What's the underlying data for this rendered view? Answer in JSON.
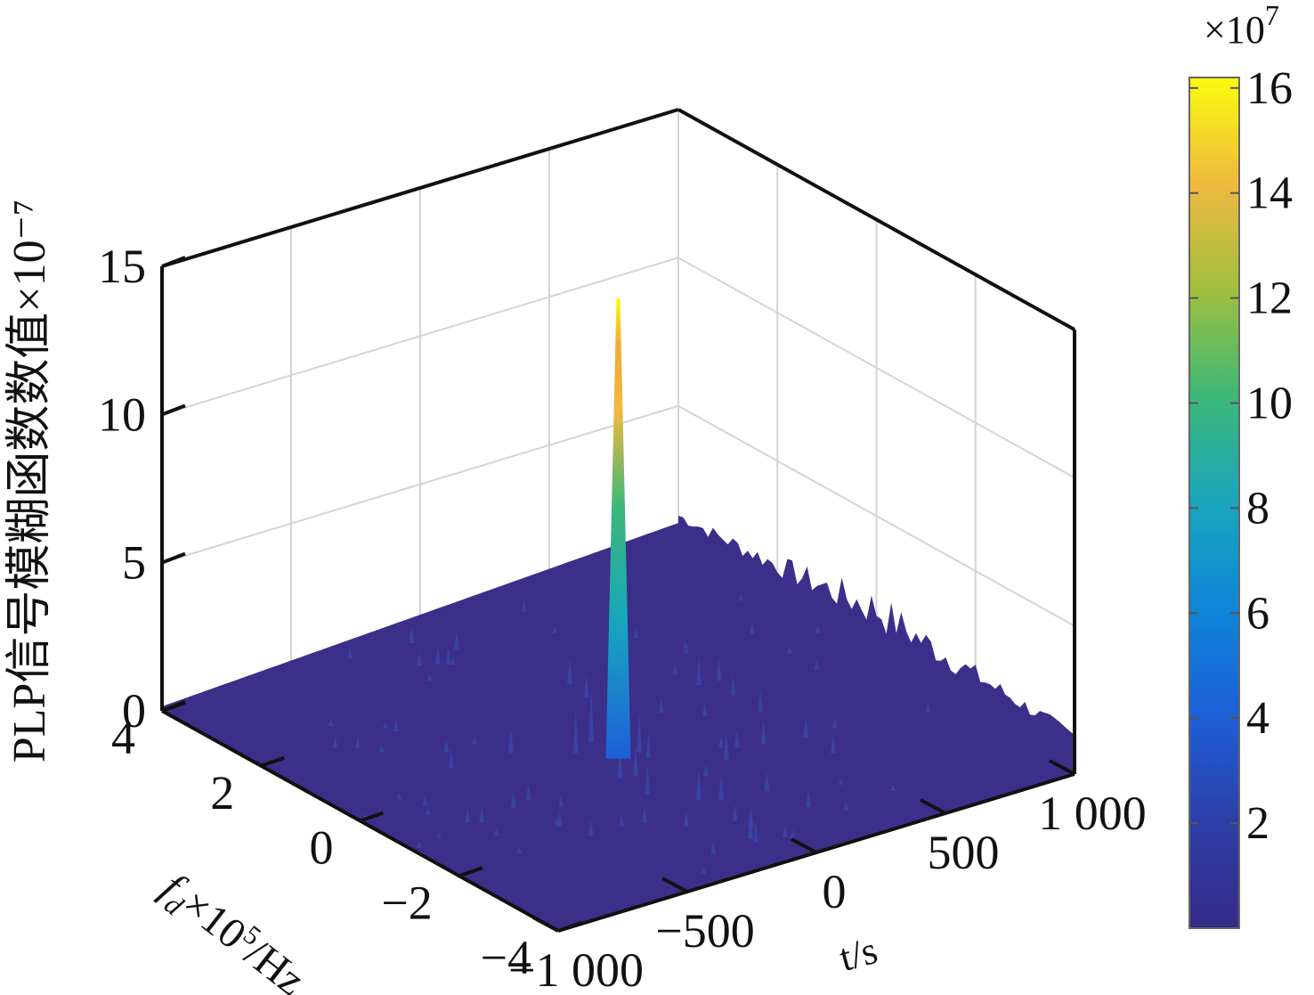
{
  "chart_data": {
    "type": "surface",
    "title": "",
    "zlabel": "PLP信号模糊函数数值×10⁻⁷",
    "xlabel": "t/s",
    "ylabel_main": "f",
    "ylabel_sub": "d",
    "ylabel_rest": "×10",
    "ylabel_sup": "5",
    "ylabel_unit": "/Hz",
    "x_range": [
      -1000,
      1000
    ],
    "y_range": [
      -4,
      4
    ],
    "z_range": [
      0,
      15
    ],
    "x_ticks": [
      "−1 000",
      "−500",
      "0",
      "500",
      "1 000"
    ],
    "y_ticks": [
      "−4",
      "−2",
      "0",
      "2",
      "4"
    ],
    "z_ticks": [
      "0",
      "5",
      "10",
      "15"
    ],
    "grid": true,
    "surface": {
      "peak_location": {
        "t": 0,
        "fd": 0
      },
      "peak_value": 15,
      "baseline_value": 0.2,
      "sidelobe_max": 2.5
    },
    "colorbar": {
      "multiplier_base": "×10",
      "multiplier_exp": "7",
      "ticks": [
        "2",
        "4",
        "6",
        "8",
        "10",
        "12",
        "14",
        "16"
      ],
      "range": [
        0,
        16.2
      ],
      "colormap": "parula"
    }
  },
  "colors": {
    "axis": "#111111",
    "grid": "#d8d2d2",
    "surface_base": "#3b2f8a"
  }
}
